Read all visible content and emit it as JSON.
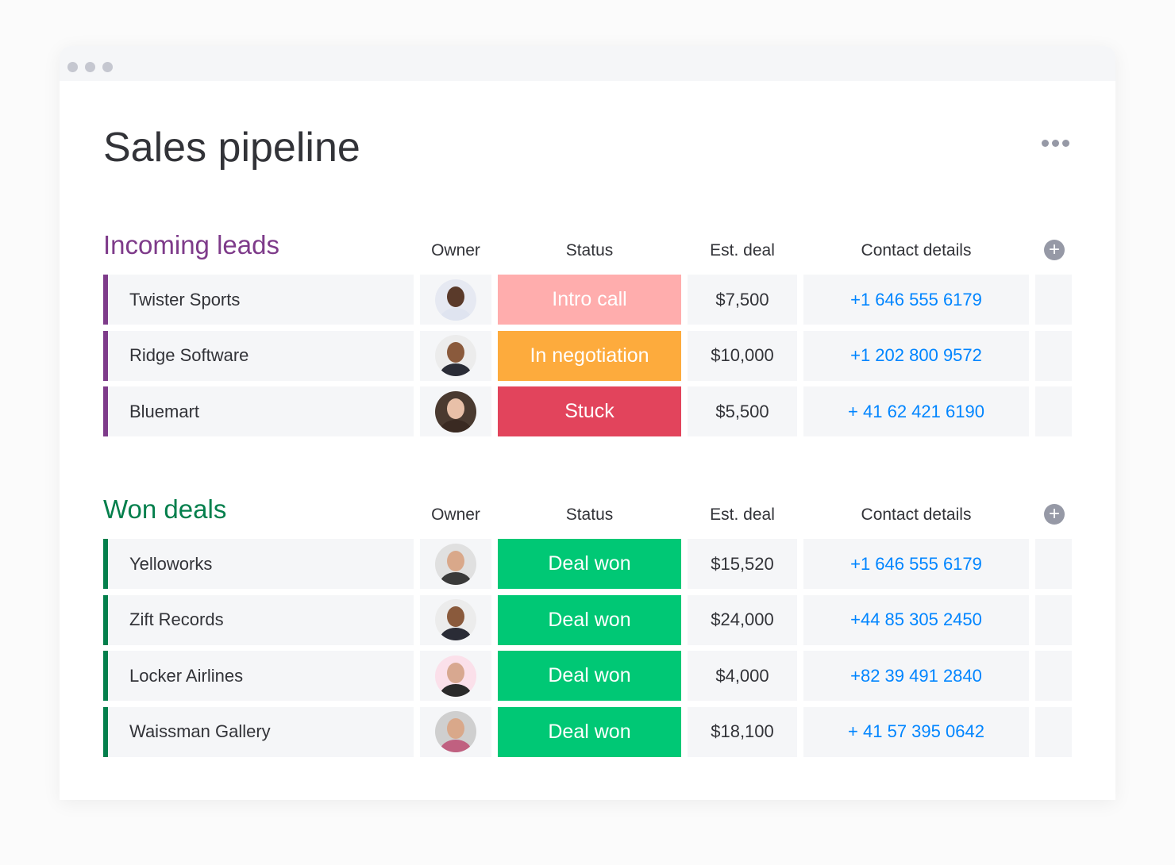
{
  "window": {
    "dots": 3
  },
  "page": {
    "title": "Sales pipeline",
    "more_icon": "ellipsis-icon"
  },
  "columns": {
    "owner": "Owner",
    "status": "Status",
    "deal": "Est. deal",
    "contact": "Contact details"
  },
  "groups": [
    {
      "title": "Incoming leads",
      "color": "#7e3b8a",
      "rows": [
        {
          "name": "Twister Sports",
          "status": "Intro call",
          "status_color": "#ffadad",
          "deal": "$7,500",
          "contact": "+1 646 555 6179",
          "avatar_bg": "#e6e9f2",
          "skin": "#5a3a2a",
          "shirt": "#dfe4f0"
        },
        {
          "name": "Ridge Software",
          "status": "In negotiation",
          "status_color": "#fdab3d",
          "deal": "$10,000",
          "contact": "+1 202 800 9572",
          "avatar_bg": "#ececec",
          "skin": "#8a5a3c",
          "shirt": "#2a2c36"
        },
        {
          "name": "Bluemart",
          "status": "Stuck",
          "status_color": "#e2445c",
          "deal": "$5,500",
          "contact": "+ 41 62 421 6190",
          "avatar_bg": "#4a3a30",
          "skin": "#e8c0a8",
          "shirt": "#3a2a22"
        }
      ]
    },
    {
      "title": "Won deals",
      "color": "#037f4c",
      "rows": [
        {
          "name": "Yelloworks",
          "status": "Deal won",
          "status_color": "#00c875",
          "deal": "$15,520",
          "contact": "+1 646 555 6179",
          "avatar_bg": "#e0e0e0",
          "skin": "#d9a88a",
          "shirt": "#3a3a3a"
        },
        {
          "name": "Zift Records",
          "status": "Deal won",
          "status_color": "#00c875",
          "deal": "$24,000",
          "contact": "+44 85 305 2450",
          "avatar_bg": "#ececec",
          "skin": "#8a5a3c",
          "shirt": "#2a2c36"
        },
        {
          "name": "Locker Airlines",
          "status": "Deal won",
          "status_color": "#00c875",
          "deal": "$4,000",
          "contact": "+82 39 491 2840",
          "avatar_bg": "#fbe0ea",
          "skin": "#d8a890",
          "shirt": "#2a2a2a"
        },
        {
          "name": "Waissman Gallery",
          "status": "Deal won",
          "status_color": "#00c875",
          "deal": "$18,100",
          "contact": "+ 41 57 395 0642",
          "avatar_bg": "#cfcfcf",
          "skin": "#d9a88a",
          "shirt": "#c06080"
        }
      ]
    }
  ]
}
